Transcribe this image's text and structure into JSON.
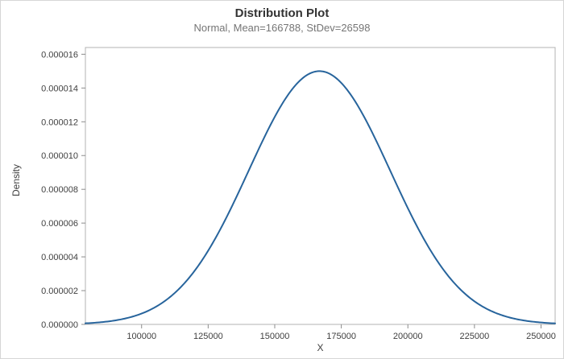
{
  "chart_data": {
    "type": "line",
    "title": "Distribution Plot",
    "subtitle": "Normal, Mean=166788, StDev=26598",
    "xlabel": "X",
    "ylabel": "Density",
    "distribution": {
      "name": "Normal",
      "mean": 166788,
      "stdev": 26598
    },
    "xlim": [
      78900,
      255300
    ],
    "ylim": [
      0,
      1.64e-05
    ],
    "x_ticks": [
      {
        "value": 100000,
        "label": "100000"
      },
      {
        "value": 125000,
        "label": "125000"
      },
      {
        "value": 150000,
        "label": "150000"
      },
      {
        "value": 175000,
        "label": "175000"
      },
      {
        "value": 200000,
        "label": "200000"
      },
      {
        "value": 225000,
        "label": "225000"
      },
      {
        "value": 250000,
        "label": "250000"
      }
    ],
    "y_ticks": [
      {
        "value": 0.0,
        "label": "0.000000"
      },
      {
        "value": 2e-06,
        "label": "0.000002"
      },
      {
        "value": 4e-06,
        "label": "0.000004"
      },
      {
        "value": 6e-06,
        "label": "0.000006"
      },
      {
        "value": 8e-06,
        "label": "0.000008"
      },
      {
        "value": 1e-05,
        "label": "0.000010"
      },
      {
        "value": 1.2e-05,
        "label": "0.000012"
      },
      {
        "value": 1.4e-05,
        "label": "0.000014"
      },
      {
        "value": 1.6e-05,
        "label": "0.000016"
      }
    ],
    "sample_points": [
      {
        "x": 86994,
        "y": 1.66e-07
      },
      {
        "x": 113592,
        "y": 2e-06
      },
      {
        "x": 140190,
        "y": 9.1e-06
      },
      {
        "x": 166788,
        "y": 1.5e-05
      },
      {
        "x": 193386,
        "y": 9.1e-06
      },
      {
        "x": 219984,
        "y": 2e-06
      },
      {
        "x": 246582,
        "y": 1.66e-07
      }
    ],
    "peak": {
      "x": 166788,
      "y": 1.5e-05
    },
    "curve_color": "#27649c",
    "border_color": "#b3b3b3",
    "tick_color": "#8c8c8c",
    "tick_label_color": "#404040",
    "grid": false,
    "legend": "none"
  }
}
